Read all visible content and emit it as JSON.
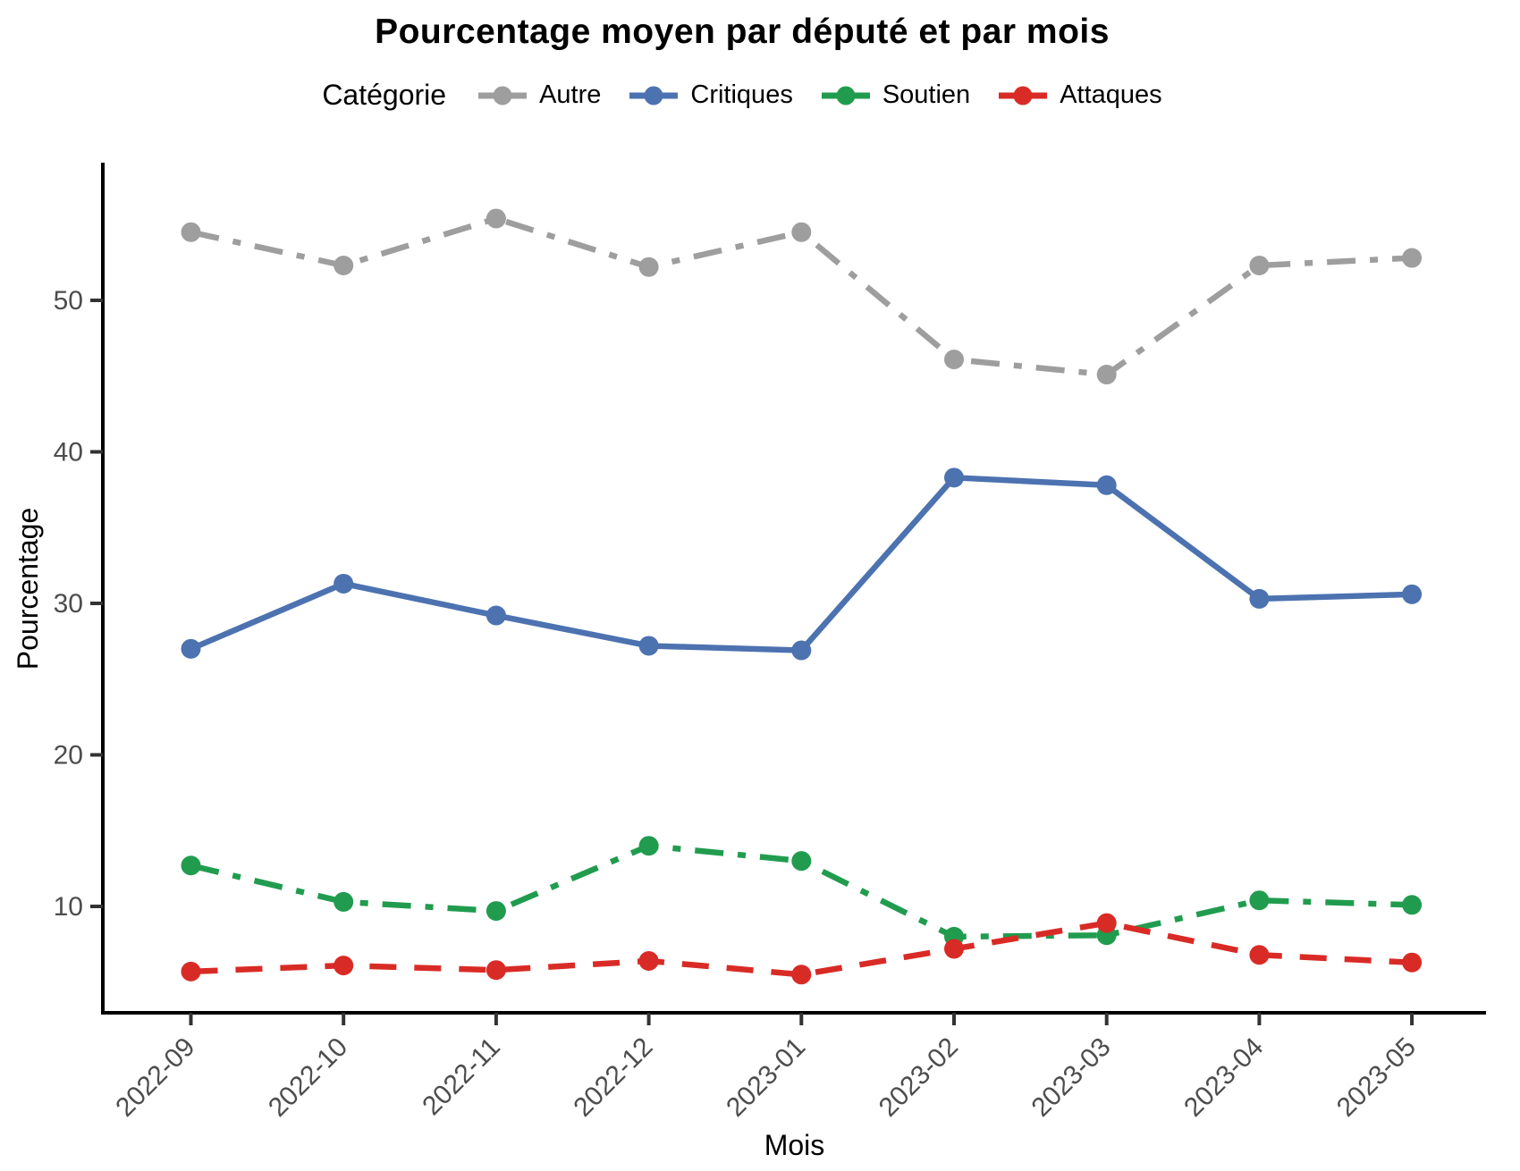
{
  "title": "Pourcentage moyen par député et par mois",
  "legend": {
    "title": "Catégorie",
    "items": [
      {
        "label": "Autre",
        "color": "#9e9e9e",
        "linetype": "dotdash"
      },
      {
        "label": "Critiques",
        "color": "#4c72b0",
        "linetype": "solid"
      },
      {
        "label": "Soutien",
        "color": "#219c4f",
        "linetype": "dotdash"
      },
      {
        "label": "Attaques",
        "color": "#d92b26",
        "linetype": "dashed"
      }
    ]
  },
  "axes": {
    "x": {
      "label": "Mois",
      "tick_labels": [
        "2022-09",
        "2022-10",
        "2022-11",
        "2022-12",
        "2023-01",
        "2023-02",
        "2023-03",
        "2023-04",
        "2023-05"
      ],
      "tick_rotation_deg": 45
    },
    "y": {
      "label": "Pourcentage",
      "tick_labels": [
        "10",
        "20",
        "30",
        "40",
        "50"
      ],
      "tick_values": [
        10,
        20,
        30,
        40,
        50
      ],
      "range": [
        3,
        59
      ]
    }
  },
  "chart_data": {
    "type": "line",
    "title": "Pourcentage moyen par député et par mois",
    "xlabel": "Mois",
    "ylabel": "Pourcentage",
    "categories": [
      "2022-09",
      "2022-10",
      "2022-11",
      "2022-12",
      "2023-01",
      "2023-02",
      "2023-03",
      "2023-04",
      "2023-05"
    ],
    "ylim": [
      3,
      59
    ],
    "yticks": [
      10,
      20,
      30,
      40,
      50
    ],
    "grid": false,
    "legend_position": "top",
    "marker": "circle",
    "series": [
      {
        "name": "Autre",
        "color": "#9e9e9e",
        "linetype": "dotdash",
        "values": [
          54.5,
          52.3,
          55.4,
          52.2,
          54.5,
          46.1,
          45.1,
          52.3,
          52.8
        ]
      },
      {
        "name": "Critiques",
        "color": "#4c72b0",
        "linetype": "solid",
        "values": [
          27.0,
          31.3,
          29.2,
          27.2,
          26.9,
          38.3,
          37.8,
          30.3,
          30.6
        ]
      },
      {
        "name": "Soutien",
        "color": "#219c4f",
        "linetype": "dotdash",
        "values": [
          12.7,
          10.3,
          9.7,
          14.0,
          13.0,
          8.0,
          8.1,
          10.4,
          10.1
        ]
      },
      {
        "name": "Attaques",
        "color": "#d92b26",
        "linetype": "dashed",
        "values": [
          5.7,
          6.1,
          5.8,
          6.4,
          5.5,
          7.2,
          8.9,
          6.8,
          6.3
        ]
      }
    ]
  }
}
